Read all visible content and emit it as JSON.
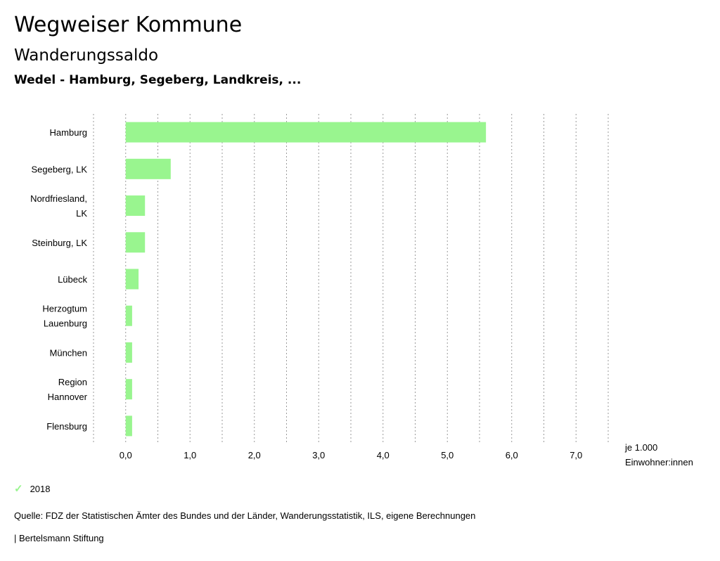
{
  "header": {
    "title": "Wegweiser Kommune",
    "subtitle": "Wanderungssaldo",
    "region": "Wedel - Hamburg, Segeberg, Landkreis, ..."
  },
  "legend": {
    "label": "2018",
    "icon": "check-icon",
    "color": "#99f58f"
  },
  "footer": {
    "source": "Quelle: FDZ der Statistischen Ämter des Bundes und der Länder, Wanderungsstatistik, ILS, eigene Berechnungen",
    "brand": "| Bertelsmann Stiftung"
  },
  "chart_data": {
    "type": "bar",
    "orientation": "horizontal",
    "categories": [
      [
        "Hamburg"
      ],
      [
        "Segeberg, LK"
      ],
      [
        "Nordfriesland,",
        "LK"
      ],
      [
        "Steinburg, LK"
      ],
      [
        "Lübeck"
      ],
      [
        "Herzogtum",
        "Lauenburg"
      ],
      [
        "München"
      ],
      [
        "Region",
        "Hannover"
      ],
      [
        "Flensburg"
      ]
    ],
    "series": [
      {
        "name": "2018",
        "color": "#99f58f",
        "values": [
          5.6,
          0.7,
          0.3,
          0.3,
          0.2,
          0.1,
          0.1,
          0.1,
          0.1
        ]
      }
    ],
    "xlim": [
      -0.5,
      7.5
    ],
    "xticks": [
      0,
      1,
      2,
      3,
      4,
      5,
      6,
      7
    ],
    "xtick_labels": [
      "0,0",
      "1,0",
      "2,0",
      "3,0",
      "4,0",
      "5,0",
      "6,0",
      "7,0"
    ],
    "xlabel": [
      "je 1.000",
      "Einwohner:innen"
    ],
    "grid": true
  }
}
